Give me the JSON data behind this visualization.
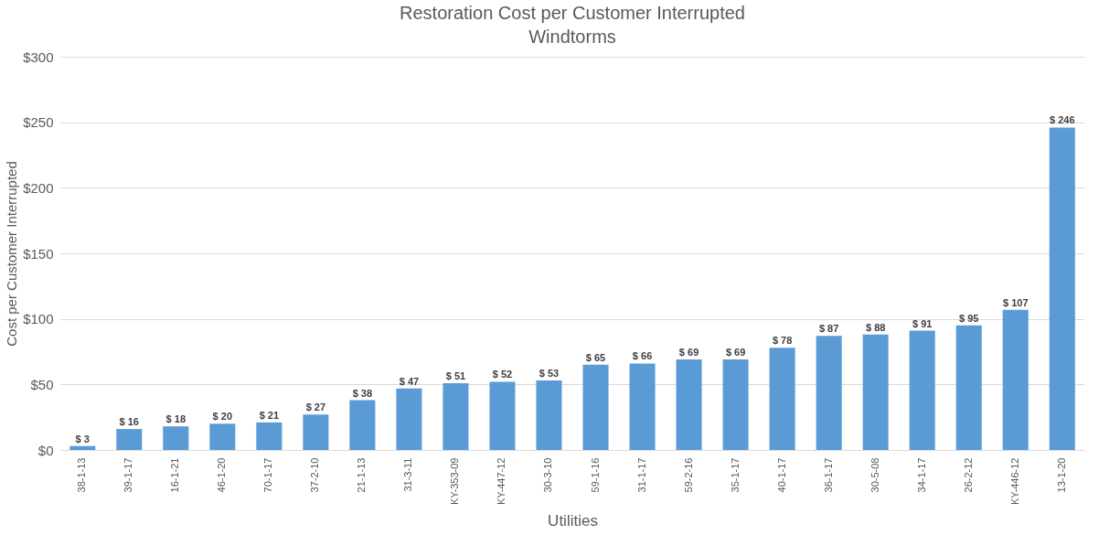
{
  "chart_data": {
    "type": "bar",
    "title": "Restoration Cost per Customer Interrupted",
    "subtitle": "Windtorms",
    "xlabel": "Utilities",
    "ylabel": "Cost per Customer Interrupted",
    "categories": [
      "38-1-13",
      "39-1-17",
      "16-1-21",
      "46-1-20",
      "70-1-17",
      "37-2-10",
      "21-1-13",
      "31-3-11",
      "KY-353-09",
      "KY-447-12",
      "30-3-10",
      "59-1-16",
      "31-1-17",
      "59-2-16",
      "35-1-17",
      "40-1-17",
      "36-1-17",
      "30-5-08",
      "34-1-17",
      "26-2-12",
      "KY-446-12",
      "13-1-20"
    ],
    "values": [
      3,
      16,
      18,
      20,
      21,
      27,
      38,
      47,
      51,
      52,
      53,
      65,
      66,
      69,
      69,
      78,
      87,
      88,
      91,
      95,
      107,
      246
    ],
    "value_labels": [
      "$ 3",
      "$ 16",
      "$ 18",
      "$ 20",
      "$ 21",
      "$ 27",
      "$ 38",
      "$ 47",
      "$ 51",
      "$ 52",
      "$ 53",
      "$ 65",
      "$ 66",
      "$ 69",
      "$ 69",
      "$ 78",
      "$ 87",
      "$ 88",
      "$ 91",
      "$ 95",
      "$ 107",
      "$ 246"
    ],
    "color": "#5b9bd5",
    "ylim": [
      0,
      300
    ],
    "yticks": [
      {
        "value": 0,
        "label": "$0"
      },
      {
        "value": 50,
        "label": "$50"
      },
      {
        "value": 100,
        "label": "$100"
      },
      {
        "value": 150,
        "label": "$150"
      },
      {
        "value": 200,
        "label": "$200"
      },
      {
        "value": 250,
        "label": "$250"
      },
      {
        "value": 300,
        "label": "$300"
      }
    ],
    "grid": "y"
  }
}
